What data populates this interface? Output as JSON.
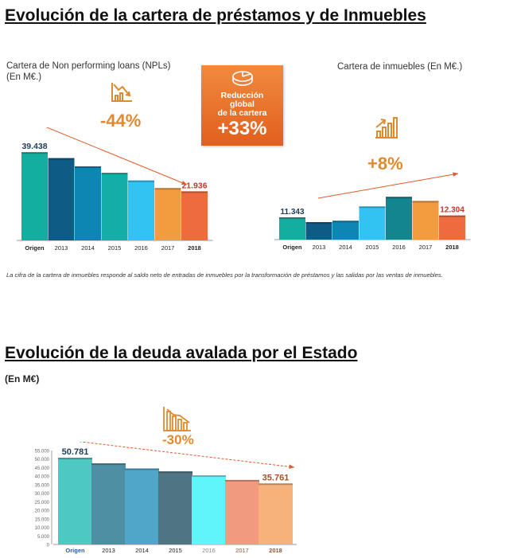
{
  "section1": {
    "title": "Evolución de la cartera de préstamos y de Inmuebles",
    "left_label_line1": "Cartera de Non performing loans (NPLs)",
    "left_label_line2": "(En M€.)",
    "left_pct": "-44%",
    "right_label": "Cartera de inmuebles (En M€.)",
    "right_pct": "+8%",
    "box_line1": "Reducción",
    "box_line2": "global",
    "box_line3": "de la cartera",
    "box_pct": "+33%",
    "note": "La cifra de la cartera de inmuebles responde al saldo neto de entradas de inmuebles por la transformación de préstamos y las salidas por las ventas de inmuebles."
  },
  "section2": {
    "title": "Evolución de la deuda avalada por el Estado",
    "unit": "(En M€)",
    "pct": "-30%"
  },
  "icons": {
    "left": "declining-chart-icon",
    "right": "growth-bars-icon",
    "box": "pie-chart-icon",
    "bottom": "declining-bars-icon"
  },
  "chart_data": [
    {
      "type": "bar",
      "categories": [
        "Origen",
        "2013",
        "2014",
        "2015",
        "2016",
        "2017",
        "2018"
      ],
      "values": [
        39438,
        36800,
        33100,
        30200,
        26800,
        23400,
        21936
      ],
      "value_labels": {
        "0": "39.438",
        "6": "21.936"
      },
      "ylim": [
        0,
        42000
      ],
      "colors": [
        "#12aea0",
        "#0e5b86",
        "#0e86b4",
        "#13aea6",
        "#33c3f3",
        "#f39b3f",
        "#ee6a3f"
      ],
      "trend": "down",
      "trend_color": "#e05a2a"
    },
    {
      "type": "bar",
      "categories": [
        "Origen",
        "2013",
        "2014",
        "2015",
        "2016",
        "2017",
        "2018"
      ],
      "values": [
        11343,
        8900,
        9600,
        16900,
        21800,
        19700,
        12304
      ],
      "value_labels": {
        "0": "11.343",
        "6": "12.304"
      },
      "ylim": [
        0,
        30000
      ],
      "colors": [
        "#12aea0",
        "#0e5b86",
        "#0e86b4",
        "#33c3f3",
        "#12858f",
        "#f39b3f",
        "#ee6a3f"
      ],
      "trend": "up",
      "trend_color": "#e05a2a"
    },
    {
      "type": "bar",
      "categories": [
        "Origen",
        "2013",
        "2014",
        "2015",
        "2016",
        "2017",
        "2018"
      ],
      "values": [
        50781,
        47500,
        44500,
        42800,
        40500,
        37800,
        35761
      ],
      "value_labels": {
        "0": "50.781",
        "6": "35.761"
      },
      "ylim": [
        0,
        55000
      ],
      "yticks": [
        0,
        5000,
        10000,
        15000,
        20000,
        25000,
        30000,
        35000,
        40000,
        45000,
        50000,
        55000
      ],
      "ytick_labels": [
        "0",
        "5.000",
        "10.000",
        "15.000",
        "20.000",
        "25.000",
        "30.000",
        "35.000",
        "40.000",
        "45.000",
        "50.000",
        "55.000"
      ],
      "colors": [
        "#4ec8c2",
        "#4f8fa3",
        "#4fa6c8",
        "#4f7583",
        "#5ff5fa",
        "#f29a7f",
        "#f7b27c"
      ],
      "trend": "down",
      "trend_color": "#e05a2a",
      "grid": false
    }
  ]
}
